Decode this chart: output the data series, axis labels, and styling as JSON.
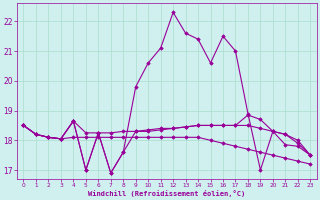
{
  "xlabel": "Windchill (Refroidissement éolien,°C)",
  "background_color": "#cff0ee",
  "grid_color": "#aaddcc",
  "line_color": "#990099",
  "xlim": [
    -0.5,
    23.5
  ],
  "ylim": [
    16.7,
    22.6
  ],
  "yticks": [
    17,
    18,
    19,
    20,
    21,
    22
  ],
  "xticks": [
    0,
    1,
    2,
    3,
    4,
    5,
    6,
    7,
    8,
    9,
    10,
    11,
    12,
    13,
    14,
    15,
    16,
    17,
    18,
    19,
    20,
    21,
    22,
    23
  ],
  "series": [
    [
      18.5,
      18.2,
      18.1,
      18.05,
      18.65,
      17.0,
      18.25,
      16.9,
      17.6,
      18.3,
      18.35,
      18.4,
      18.4,
      18.45,
      18.5,
      18.5,
      18.5,
      18.5,
      18.85,
      18.7,
      18.3,
      18.2,
      17.9,
      17.5
    ],
    [
      18.5,
      18.2,
      18.1,
      18.05,
      18.65,
      17.0,
      18.25,
      16.9,
      17.6,
      19.8,
      20.6,
      21.1,
      22.3,
      21.6,
      21.4,
      20.6,
      21.5,
      21.0,
      18.9,
      17.0,
      18.3,
      17.85,
      17.8,
      17.5
    ],
    [
      18.5,
      18.2,
      18.1,
      18.05,
      18.65,
      18.25,
      18.25,
      18.25,
      18.3,
      18.3,
      18.3,
      18.35,
      18.4,
      18.45,
      18.5,
      18.5,
      18.5,
      18.5,
      18.5,
      18.4,
      18.3,
      18.2,
      18.0,
      17.5
    ],
    [
      18.5,
      18.2,
      18.1,
      18.05,
      18.1,
      18.1,
      18.1,
      18.1,
      18.1,
      18.1,
      18.1,
      18.1,
      18.1,
      18.1,
      18.1,
      18.0,
      17.9,
      17.8,
      17.7,
      17.6,
      17.5,
      17.4,
      17.3,
      17.2
    ]
  ]
}
